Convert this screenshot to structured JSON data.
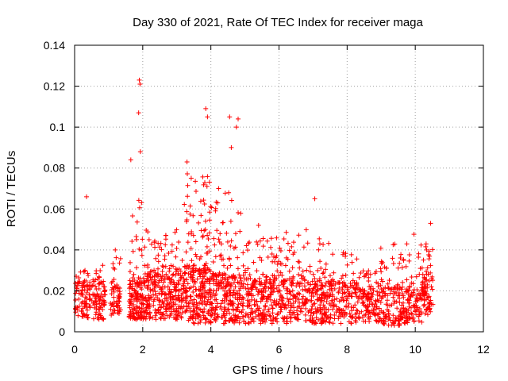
{
  "chart_data": {
    "type": "scatter",
    "title": "Day 330 of 2021, Rate Of TEC Index for receiver maga",
    "xlabel": "GPS time / hours",
    "ylabel": "ROTI / TECUs",
    "xlim": [
      0,
      12
    ],
    "ylim": [
      0,
      0.14
    ],
    "xticks": [
      0,
      2,
      4,
      6,
      8,
      10,
      12
    ],
    "yticks": [
      0,
      0.02,
      0.04,
      0.06,
      0.08,
      0.1,
      0.12,
      0.14
    ],
    "xtick_labels": [
      "0",
      "2",
      "4",
      "6",
      "8",
      "10",
      "12"
    ],
    "ytick_labels": [
      "0",
      "0.02",
      "0.04",
      "0.06",
      "0.08",
      "0.1",
      "0.12",
      "0.14"
    ],
    "grid": true,
    "marker": "plus",
    "color": "#ff0000",
    "notable_points": [
      {
        "x": 0.35,
        "y": 0.066
      },
      {
        "x": 1.9,
        "y": 0.123
      },
      {
        "x": 1.92,
        "y": 0.121
      },
      {
        "x": 1.88,
        "y": 0.107
      },
      {
        "x": 1.93,
        "y": 0.088
      },
      {
        "x": 1.65,
        "y": 0.084
      },
      {
        "x": 3.85,
        "y": 0.109
      },
      {
        "x": 3.9,
        "y": 0.105
      },
      {
        "x": 4.55,
        "y": 0.105
      },
      {
        "x": 4.8,
        "y": 0.104
      },
      {
        "x": 4.75,
        "y": 0.1
      },
      {
        "x": 4.6,
        "y": 0.09
      },
      {
        "x": 3.3,
        "y": 0.083
      },
      {
        "x": 7.05,
        "y": 0.065
      },
      {
        "x": 10.45,
        "y": 0.053
      },
      {
        "x": 5.4,
        "y": 0.052
      }
    ],
    "segments": [
      {
        "x0": 0.02,
        "x1": 0.9,
        "base": [
          0.006,
          0.024
        ],
        "top": 0.033,
        "n": 170
      },
      {
        "x0": 1.05,
        "x1": 1.35,
        "base": [
          0.006,
          0.022
        ],
        "top": 0.041,
        "n": 60
      },
      {
        "x0": 1.6,
        "x1": 2.0,
        "base": [
          0.006,
          0.025
        ],
        "top": 0.072,
        "n": 130
      },
      {
        "x0": 2.0,
        "x1": 3.2,
        "base": [
          0.006,
          0.028
        ],
        "top": 0.05,
        "n": 300
      },
      {
        "x0": 3.2,
        "x1": 4.0,
        "base": [
          0.004,
          0.03
        ],
        "top": 0.078,
        "n": 260
      },
      {
        "x0": 4.0,
        "x1": 4.9,
        "base": [
          0.004,
          0.028
        ],
        "top": 0.07,
        "n": 240
      },
      {
        "x0": 4.9,
        "x1": 5.8,
        "base": [
          0.004,
          0.025
        ],
        "top": 0.047,
        "n": 200
      },
      {
        "x0": 5.8,
        "x1": 7.2,
        "base": [
          0.004,
          0.026
        ],
        "top": 0.05,
        "n": 280
      },
      {
        "x0": 7.2,
        "x1": 8.3,
        "base": [
          0.004,
          0.024
        ],
        "top": 0.044,
        "n": 220
      },
      {
        "x0": 8.3,
        "x1": 8.9,
        "base": [
          0.005,
          0.02
        ],
        "top": 0.03,
        "n": 110
      },
      {
        "x0": 8.9,
        "x1": 9.6,
        "base": [
          0.003,
          0.022
        ],
        "top": 0.043,
        "n": 130
      },
      {
        "x0": 9.6,
        "x1": 10.2,
        "base": [
          0.004,
          0.022
        ],
        "top": 0.048,
        "n": 120
      },
      {
        "x0": 10.2,
        "x1": 10.52,
        "base": [
          0.008,
          0.028
        ],
        "top": 0.044,
        "n": 80
      }
    ]
  }
}
